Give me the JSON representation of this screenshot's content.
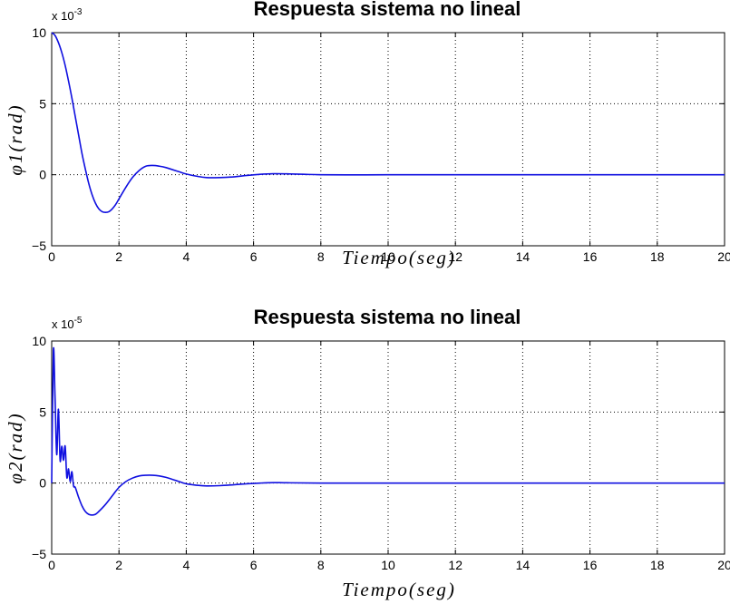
{
  "chart_data": [
    {
      "type": "line",
      "title": "Respuesta sistema  no lineal",
      "xlabel": "Tiempo(seg)",
      "ylabel": "φ1(rad)",
      "y_multiplier": "x 10",
      "y_multiplier_exponent": "-3",
      "xlim": [
        0,
        20
      ],
      "ylim": [
        -5,
        10
      ],
      "xticks": [
        "0",
        "2",
        "4",
        "6",
        "8",
        "10",
        "12",
        "14",
        "16",
        "18",
        "20"
      ],
      "yticks": [
        "-5",
        "0",
        "5",
        "10"
      ],
      "grid": true,
      "color": "#1010e0",
      "x": [
        0,
        0.1,
        0.2,
        0.3,
        0.4,
        0.5,
        0.6,
        0.7,
        0.8,
        0.9,
        1.0,
        1.1,
        1.2,
        1.3,
        1.4,
        1.5,
        1.6,
        1.7,
        1.8,
        1.9,
        2.0,
        2.2,
        2.4,
        2.6,
        2.8,
        3.0,
        3.2,
        3.4,
        3.6,
        3.8,
        4.0,
        4.3,
        4.6,
        5.0,
        5.4,
        5.8,
        6.2,
        6.6,
        7.0,
        7.5,
        8.0,
        9.0,
        10.0,
        12.0,
        14.0,
        16.0,
        18.0,
        20.0
      ],
      "values": [
        10,
        9.8,
        9.3,
        8.6,
        7.7,
        6.6,
        5.4,
        4.1,
        2.8,
        1.5,
        0.4,
        -0.6,
        -1.4,
        -2.0,
        -2.4,
        -2.6,
        -2.65,
        -2.6,
        -2.4,
        -2.1,
        -1.7,
        -0.9,
        -0.2,
        0.3,
        0.6,
        0.65,
        0.6,
        0.5,
        0.35,
        0.2,
        0.05,
        -0.1,
        -0.2,
        -0.2,
        -0.15,
        -0.05,
        0.03,
        0.07,
        0.06,
        0.03,
        0.0,
        -0.01,
        0.0,
        0.0,
        0.0,
        0.0,
        0.0,
        0.0
      ]
    },
    {
      "type": "line",
      "title": "Respuesta sistema no lineal",
      "xlabel": "Tiempo(seg)",
      "ylabel": "φ2(rad)",
      "y_multiplier": "x 10",
      "y_multiplier_exponent": "-5",
      "xlim": [
        0,
        20
      ],
      "ylim": [
        -5,
        10
      ],
      "xticks": [
        "0",
        "2",
        "4",
        "6",
        "8",
        "10",
        "12",
        "14",
        "16",
        "18",
        "20"
      ],
      "yticks": [
        "-5",
        "0",
        "5",
        "10"
      ],
      "grid": true,
      "color": "#1010e0",
      "x": [
        0,
        0.05,
        0.1,
        0.15,
        0.2,
        0.25,
        0.3,
        0.35,
        0.4,
        0.45,
        0.5,
        0.55,
        0.6,
        0.65,
        0.7,
        0.8,
        0.9,
        1.0,
        1.1,
        1.2,
        1.3,
        1.4,
        1.6,
        1.8,
        2.0,
        2.2,
        2.4,
        2.6,
        2.8,
        3.0,
        3.2,
        3.4,
        3.6,
        3.8,
        4.0,
        4.3,
        4.6,
        5.0,
        5.4,
        5.8,
        6.2,
        6.6,
        7.0,
        8.0,
        10.0,
        12.0,
        14.0,
        16.0,
        18.0,
        20.0
      ],
      "values": [
        0,
        9.3,
        6.0,
        2.0,
        5.2,
        1.6,
        2.6,
        1.6,
        2.6,
        0.4,
        1.0,
        0.1,
        0.8,
        -0.2,
        -0.3,
        -1.0,
        -1.6,
        -2.0,
        -2.2,
        -2.25,
        -2.2,
        -2.0,
        -1.5,
        -0.9,
        -0.3,
        0.1,
        0.35,
        0.5,
        0.55,
        0.55,
        0.5,
        0.4,
        0.25,
        0.1,
        -0.05,
        -0.15,
        -0.2,
        -0.18,
        -0.12,
        -0.05,
        0.0,
        0.03,
        0.02,
        0.0,
        0.0,
        0.0,
        0.0,
        0.0,
        0.0,
        0.0
      ]
    }
  ]
}
